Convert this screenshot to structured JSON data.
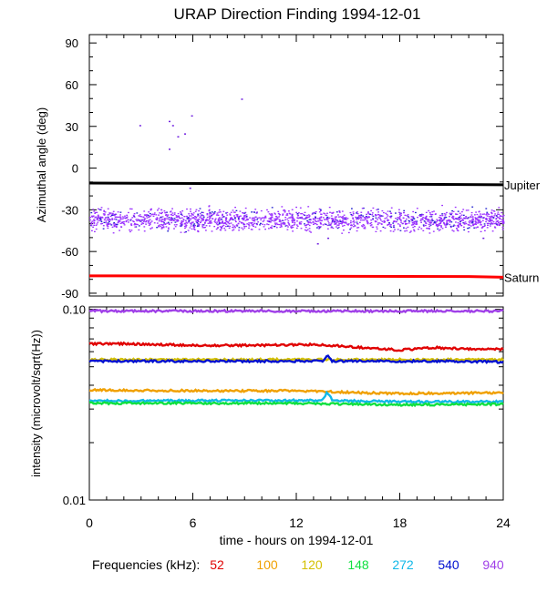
{
  "chart_data": [
    {
      "type": "scatter",
      "title": "URAP Direction Finding  1994-12-01",
      "xlabel": "time - hours on 1994-12-01",
      "ylabel": "Azimuthal angle (deg)",
      "xlim": [
        0,
        24
      ],
      "ylim": [
        -92,
        96
      ],
      "y_ticks": [
        90,
        60,
        30,
        0,
        -30,
        -60,
        -90
      ],
      "x_ticks": [
        0,
        6,
        12,
        18,
        24
      ],
      "reference_lines": [
        {
          "name": "Jupiter",
          "color": "#000000",
          "x": [
            0,
            16.5,
            24
          ],
          "y": [
            -10.8,
            -11.5,
            -12
          ]
        },
        {
          "name": "Saturn",
          "color": "#ff0000",
          "x": [
            0,
            22,
            24
          ],
          "y": [
            -77.5,
            -78,
            -78.5
          ]
        }
      ],
      "scatter_band": {
        "color": "#9b30ff",
        "x_range": [
          0,
          24
        ],
        "center": -37,
        "spread": 7
      },
      "outliers": [
        {
          "x": 2.9,
          "y": 31
        },
        {
          "x": 4.6,
          "y": 34
        },
        {
          "x": 4.8,
          "y": 31
        },
        {
          "x": 4.6,
          "y": 14
        },
        {
          "x": 5.1,
          "y": 23
        },
        {
          "x": 5.5,
          "y": 25
        },
        {
          "x": 5.9,
          "y": 38
        },
        {
          "x": 8.8,
          "y": 50
        },
        {
          "x": 5.8,
          "y": -14
        },
        {
          "x": 13.2,
          "y": -54
        },
        {
          "x": 13.8,
          "y": -50
        },
        {
          "x": 22.8,
          "y": -50
        }
      ]
    },
    {
      "type": "line",
      "ylabel": "intensity (microvolt/sqrt(Hz))",
      "xlabel": "time - hours on 1994-12-01",
      "xlim": [
        0,
        24
      ],
      "ylim": [
        0.01,
        0.1
      ],
      "y_scale": "log",
      "y_tick_labels": [
        "0.10",
        "0.01"
      ],
      "x_ticks": [
        0,
        6,
        12,
        18,
        24
      ],
      "series": [
        {
          "name": "940",
          "color": "#a040e8",
          "x": [
            0,
            6,
            12,
            18,
            24
          ],
          "values": [
            0.098,
            0.098,
            0.098,
            0.098,
            0.098
          ]
        },
        {
          "name": "52",
          "color": "#e00000",
          "x": [
            0,
            2,
            6,
            10,
            13,
            16,
            18,
            20,
            22,
            24
          ],
          "values": [
            0.066,
            0.066,
            0.0648,
            0.0648,
            0.0655,
            0.063,
            0.0612,
            0.063,
            0.0618,
            0.0618
          ]
        },
        {
          "name": "120",
          "color": "#d4c000",
          "x": [
            0,
            6,
            12,
            14,
            24
          ],
          "values": [
            0.0545,
            0.0545,
            0.0545,
            0.0545,
            0.0545
          ]
        },
        {
          "name": "540",
          "color": "#0010d0",
          "x": [
            0,
            6,
            13.5,
            13.8,
            14.1,
            20,
            24
          ],
          "values": [
            0.0535,
            0.0535,
            0.0535,
            0.057,
            0.0535,
            0.0535,
            0.053
          ]
        },
        {
          "name": "100",
          "color": "#f0a000",
          "x": [
            0,
            6,
            12,
            16,
            18,
            24
          ],
          "values": [
            0.0378,
            0.0374,
            0.0374,
            0.0365,
            0.0362,
            0.0365
          ]
        },
        {
          "name": "272",
          "color": "#10b8e8",
          "x": [
            0,
            6,
            13.5,
            13.8,
            14.1,
            18,
            24
          ],
          "values": [
            0.0332,
            0.0332,
            0.0333,
            0.0368,
            0.0332,
            0.0328,
            0.0328
          ]
        },
        {
          "name": "148",
          "color": "#10e040",
          "x": [
            0,
            6,
            12,
            16,
            18,
            24
          ],
          "values": [
            0.0322,
            0.0322,
            0.0322,
            0.0318,
            0.0316,
            0.0318
          ]
        }
      ]
    }
  ],
  "legend": {
    "label": "Frequencies (kHz):",
    "items": [
      {
        "text": "52",
        "color": "#e00000"
      },
      {
        "text": "100",
        "color": "#f0a000"
      },
      {
        "text": "120",
        "color": "#d4c000"
      },
      {
        "text": "148",
        "color": "#10e040"
      },
      {
        "text": "272",
        "color": "#10b8e8"
      },
      {
        "text": "540",
        "color": "#0010d0"
      },
      {
        "text": "940",
        "color": "#a040e8"
      }
    ]
  }
}
